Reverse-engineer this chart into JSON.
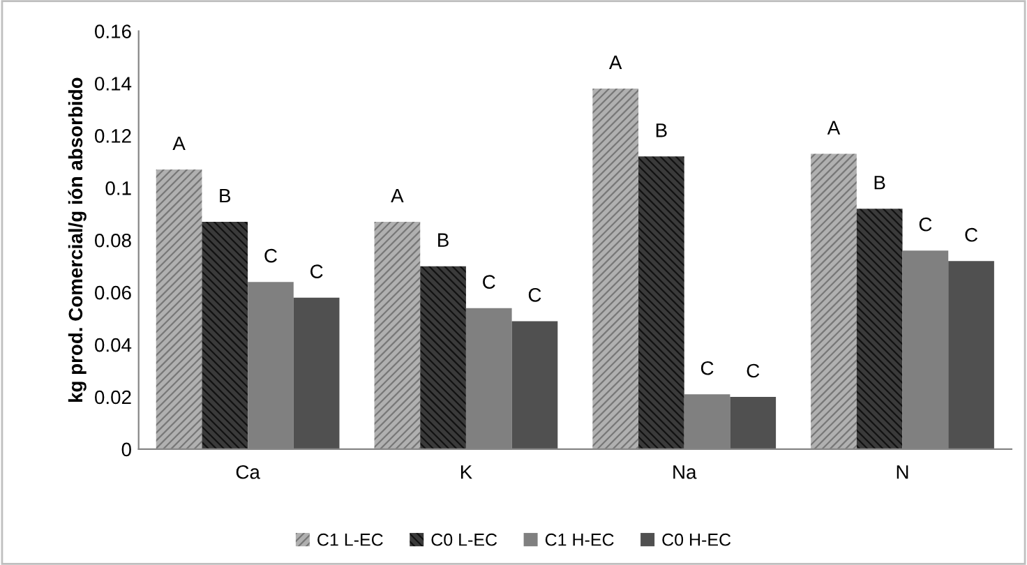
{
  "chart_data": {
    "type": "bar",
    "ylabel": "kg prod. Comercial/g ión absorbido",
    "categories": [
      "Ca",
      "K",
      "Na",
      "N"
    ],
    "series": [
      {
        "name": "C1 L-EC",
        "color": "#b0b0b0",
        "values": [
          0.107,
          0.087,
          0.138,
          0.113
        ],
        "value_labels": [
          "A",
          "A",
          "A",
          "A"
        ]
      },
      {
        "name": "C0 L-EC",
        "color": "#3a3a3a",
        "values": [
          0.087,
          0.07,
          0.112,
          0.092
        ],
        "value_labels": [
          "B",
          "B",
          "B",
          "B"
        ]
      },
      {
        "name": "C1 H-EC",
        "color": "#808080",
        "values": [
          0.064,
          0.054,
          0.021,
          0.076
        ],
        "value_labels": [
          "C",
          "C",
          "C",
          "C"
        ]
      },
      {
        "name": "C0 H-EC",
        "color": "#505050",
        "values": [
          0.058,
          0.049,
          0.02,
          0.072
        ],
        "value_labels": [
          "C",
          "C",
          "C",
          "C"
        ]
      }
    ],
    "ylim": [
      0,
      0.16
    ],
    "yticks": [
      {
        "value": 0,
        "label": "0"
      },
      {
        "value": 0.02,
        "label": "0.02"
      },
      {
        "value": 0.04,
        "label": "0.04"
      },
      {
        "value": 0.06,
        "label": "0.06"
      },
      {
        "value": 0.08,
        "label": "0.08"
      },
      {
        "value": 0.1,
        "label": "0.1"
      },
      {
        "value": 0.12,
        "label": "0.12"
      },
      {
        "value": 0.14,
        "label": "0.14"
      },
      {
        "value": 0.16,
        "label": "0.16"
      }
    ],
    "grid": false,
    "legend": "bottom"
  }
}
